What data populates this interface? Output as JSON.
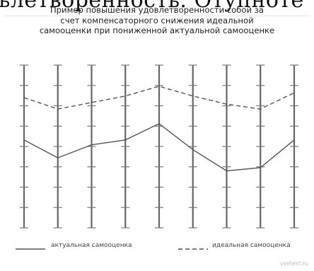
{
  "header_text": "ьлетворенность. Отупноте",
  "watermark": "vsetest.ru",
  "chart_data": {
    "type": "line",
    "title_lines": [
      "Пример повышения удовлетворенности собой за",
      "счет компенсаторного снижения идеальной",
      "самооценки при пониженной актуальной самооценке"
    ],
    "x": [
      1,
      2,
      3,
      4,
      5,
      6,
      7,
      8,
      9
    ],
    "ylim": [
      0,
      100
    ],
    "series": [
      {
        "name": "актуальная самооценка",
        "style": "solid",
        "color": "#555555",
        "values": [
          54,
          43,
          51,
          54,
          64,
          48,
          35,
          37,
          54
        ]
      },
      {
        "name": "идеальная самооценка",
        "style": "dashed",
        "color": "#555555",
        "values": [
          80,
          73,
          77,
          81,
          87,
          81,
          76,
          73,
          83
        ]
      }
    ],
    "legend_position": "bottom",
    "grid": false
  }
}
